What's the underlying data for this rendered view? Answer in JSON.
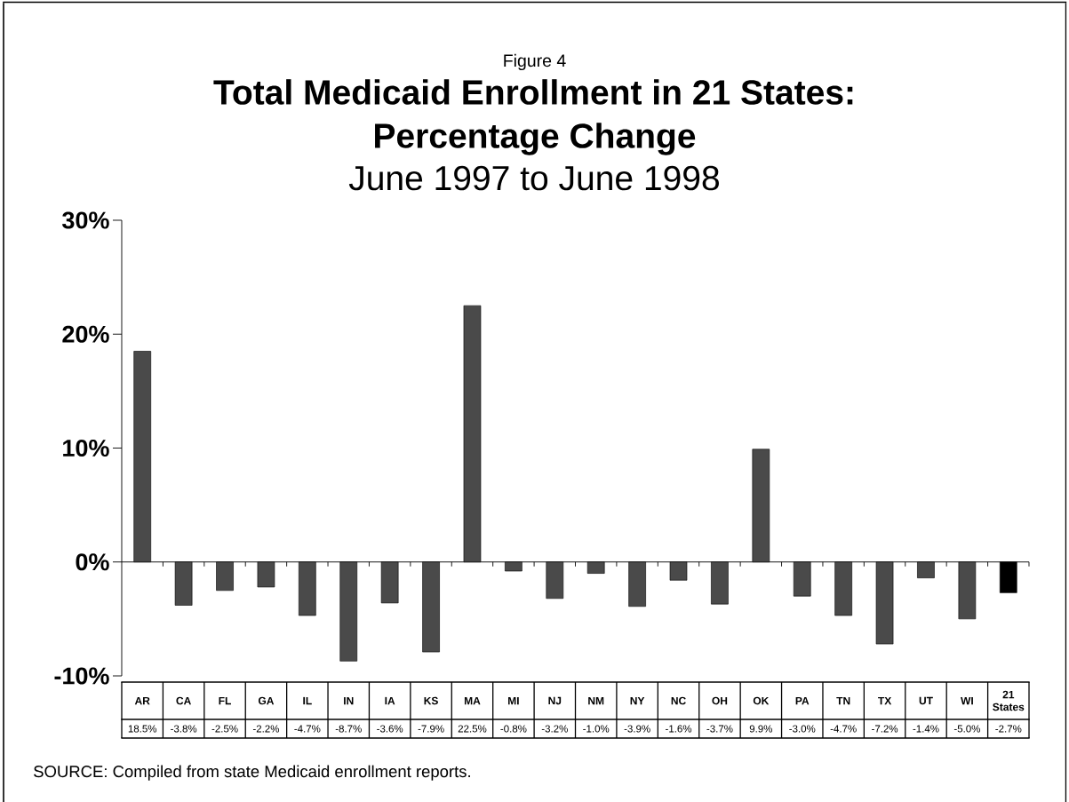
{
  "chart_data": {
    "type": "bar",
    "title": "Total Medicaid Enrollment in 21 States: Percentage Change",
    "subtitle": "June 1997 to June 1998",
    "annotations": [
      "Figure 4",
      "SOURCE: Compiled from state Medicaid enrollment reports."
    ],
    "categories": [
      "AR",
      "CA",
      "FL",
      "GA",
      "IL",
      "IN",
      "IA",
      "KS",
      "MA",
      "MI",
      "NJ",
      "NM",
      "NY",
      "NC",
      "OH",
      "OK",
      "PA",
      "TN",
      "TX",
      "UT",
      "WI",
      "21 States"
    ],
    "values": [
      18.5,
      -3.8,
      -2.5,
      -2.2,
      -4.7,
      -8.7,
      -3.6,
      -7.9,
      22.5,
      -0.8,
      -3.2,
      -1.0,
      -3.9,
      -1.6,
      -3.7,
      9.9,
      -3.0,
      -4.7,
      -7.2,
      -1.4,
      -5.0,
      -2.7
    ],
    "colors": [
      "#4a4a4a",
      "#4a4a4a",
      "#4a4a4a",
      "#4a4a4a",
      "#4a4a4a",
      "#4a4a4a",
      "#4a4a4a",
      "#4a4a4a",
      "#4a4a4a",
      "#4a4a4a",
      "#4a4a4a",
      "#4a4a4a",
      "#4a4a4a",
      "#4a4a4a",
      "#4a4a4a",
      "#4a4a4a",
      "#4a4a4a",
      "#4a4a4a",
      "#4a4a4a",
      "#4a4a4a",
      "#4a4a4a",
      "#000000"
    ],
    "value_labels": [
      "18.5%",
      "-3.8%",
      "-2.5%",
      "-2.2%",
      "-4.7%",
      "-8.7%",
      "-3.6%",
      "-7.9%",
      "22.5%",
      "-0.8%",
      "-3.2%",
      "-1.0%",
      "-3.9%",
      "-1.6%",
      "-3.7%",
      "9.9%",
      "-3.0%",
      "-4.7%",
      "-7.2%",
      "-1.4%",
      "-5.0%",
      "-2.7%"
    ],
    "ylim": [
      -10,
      30
    ],
    "yticks": [
      {
        "value": -10,
        "label": "-10%"
      },
      {
        "value": 0,
        "label": "0%"
      },
      {
        "value": 10,
        "label": "10%"
      },
      {
        "value": 20,
        "label": "20%"
      },
      {
        "value": 30,
        "label": "30%"
      }
    ]
  }
}
